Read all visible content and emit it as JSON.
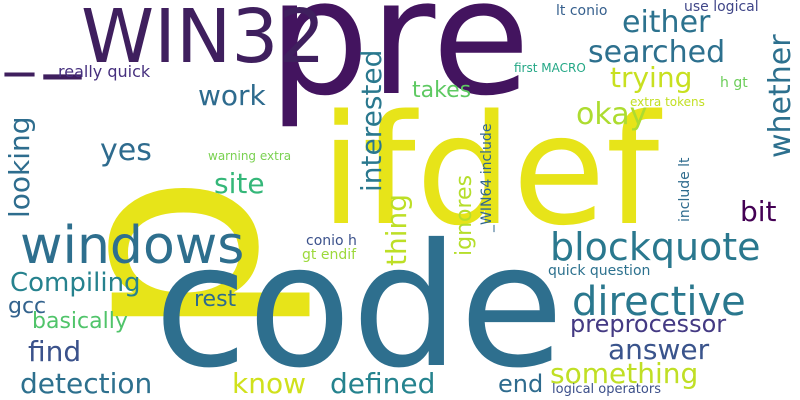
{
  "cloud": {
    "words": [
      {
        "text": "pre",
        "color": "#43145f"
      },
      {
        "text": "p",
        "color": "#e7e419"
      },
      {
        "text": "ifdef",
        "color": "#e7e419"
      },
      {
        "text": "code",
        "color": "#2e6f8e"
      },
      {
        "text": "_WIN32",
        "color": "#3f1f5e"
      },
      {
        "text": "windows",
        "color": "#2e6f8e"
      },
      {
        "text": "blockquote",
        "color": "#2a788e"
      },
      {
        "text": "directive",
        "color": "#2a788e"
      },
      {
        "text": "either",
        "color": "#2c728e"
      },
      {
        "text": "searched",
        "color": "#2d708e"
      },
      {
        "text": "trying",
        "color": "#c8e020"
      },
      {
        "text": "okay",
        "color": "#addc30"
      },
      {
        "text": "whether",
        "color": "#2d708e"
      },
      {
        "text": "work",
        "color": "#2e6b8e"
      },
      {
        "text": "yes",
        "color": "#2e6b8e"
      },
      {
        "text": "site",
        "color": "#35b779"
      },
      {
        "text": "looking",
        "color": "#2e6d8e"
      },
      {
        "text": "interested",
        "color": "#2a788e"
      },
      {
        "text": "thing",
        "color": "#bddf26"
      },
      {
        "text": "ignores",
        "color": "#b5de2b"
      },
      {
        "text": "bit",
        "color": "#440154"
      },
      {
        "text": "takes",
        "color": "#5ec962"
      },
      {
        "text": "Compiling",
        "color": "#26828e"
      },
      {
        "text": "gcc",
        "color": "#33638d"
      },
      {
        "text": "basically",
        "color": "#50c46a"
      },
      {
        "text": "rest",
        "color": "#2e6b8e"
      },
      {
        "text": "find",
        "color": "#3b528b"
      },
      {
        "text": "preprocessor",
        "color": "#443a83"
      },
      {
        "text": "answer",
        "color": "#3a548c"
      },
      {
        "text": "something",
        "color": "#c0df25"
      },
      {
        "text": "detection",
        "color": "#2d708e"
      },
      {
        "text": "know",
        "color": "#d0e11c"
      },
      {
        "text": "defined",
        "color": "#25838e"
      },
      {
        "text": "end",
        "color": "#2e6b8e"
      },
      {
        "text": "really quick",
        "color": "#46307e"
      },
      {
        "text": "lt conio",
        "color": "#355f8d"
      },
      {
        "text": "use logical",
        "color": "#404688"
      },
      {
        "text": "first MACRO",
        "color": "#22a785"
      },
      {
        "text": "h gt",
        "color": "#6ccd5a"
      },
      {
        "text": "extra tokens",
        "color": "#c2df23"
      },
      {
        "text": "_WIN64 include",
        "color": "#31678e"
      },
      {
        "text": "include lt",
        "color": "#2f6c8e"
      },
      {
        "text": "warning extra",
        "color": "#7ad151"
      },
      {
        "text": "conio h",
        "color": "#3b518b"
      },
      {
        "text": "gt endif",
        "color": "#9dd93b"
      },
      {
        "text": "quick question",
        "color": "#2c718e"
      },
      {
        "text": "logical operators",
        "color": "#3c4f8a"
      },
      {
        "text": "_",
        "color": "#3f1f5e"
      }
    ]
  }
}
